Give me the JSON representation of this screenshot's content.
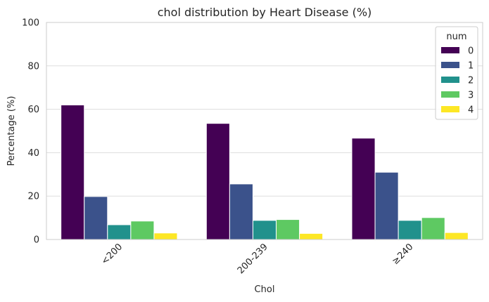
{
  "chart_data": {
    "type": "bar",
    "title": "chol distribution by Heart Disease (%)",
    "xlabel": "Chol",
    "ylabel": "Percentage (%)",
    "categories": [
      "<200",
      "200-239",
      "≥240"
    ],
    "ylim": [
      0,
      100
    ],
    "yticks": [
      "0",
      "20",
      "40",
      "60",
      "80",
      "100"
    ],
    "grid": true,
    "legend": {
      "title": "num",
      "placement": "top-right"
    },
    "series": [
      {
        "name": "0",
        "color": "#440154",
        "values": [
          62.0,
          53.5,
          46.7
        ]
      },
      {
        "name": "1",
        "color": "#3b528b",
        "values": [
          19.8,
          25.6,
          31.0
        ]
      },
      {
        "name": "2",
        "color": "#21918c",
        "values": [
          6.8,
          8.8,
          8.8
        ]
      },
      {
        "name": "3",
        "color": "#5ec962",
        "values": [
          8.5,
          9.2,
          10.1
        ]
      },
      {
        "name": "4",
        "color": "#fde725",
        "values": [
          3.0,
          2.8,
          3.2
        ]
      }
    ]
  }
}
